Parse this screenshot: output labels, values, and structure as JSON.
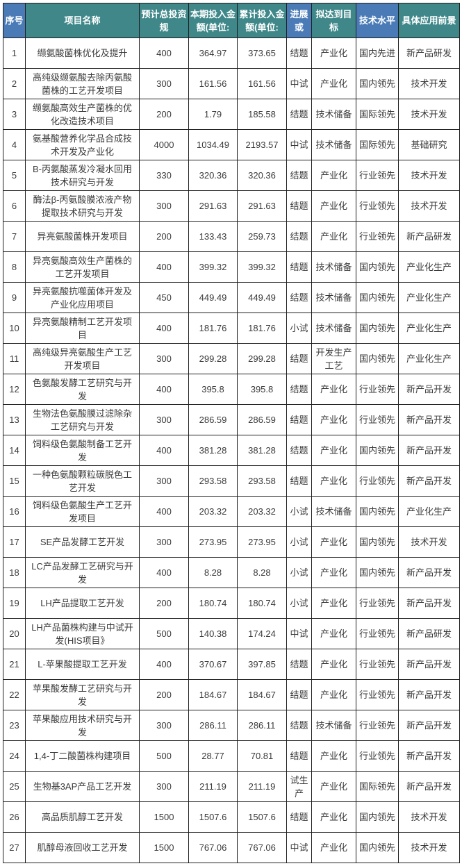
{
  "colors": {
    "teal": "#3F8789",
    "blue": "#4A7BB6",
    "header_text": "#FFFFFF",
    "body_text": "#3A3A3A",
    "border": "#1F1F1F"
  },
  "table": {
    "columns": [
      {
        "key": "seq",
        "label": "序号",
        "style": "blue"
      },
      {
        "key": "name",
        "label": "项目名称",
        "style": "teal"
      },
      {
        "key": "planned",
        "label": "预计总投资规",
        "style": "teal"
      },
      {
        "key": "current",
        "label": "本期投入金额(单位:",
        "style": "teal"
      },
      {
        "key": "cumulative",
        "label": "累计投入金额(单位:",
        "style": "teal"
      },
      {
        "key": "progress",
        "label": "进展或",
        "style": "blue"
      },
      {
        "key": "goal",
        "label": "拟达到目标",
        "style": "teal"
      },
      {
        "key": "tech_level",
        "label": "技术水平",
        "style": "blue"
      },
      {
        "key": "application",
        "label": "具体应用前景",
        "style": "teal"
      }
    ],
    "rows": [
      {
        "seq": "1",
        "name": "缬氨酸菌株优化及提升",
        "planned": "400",
        "current": "364.97",
        "cumulative": "373.65",
        "progress": "结题",
        "goal": "产业化",
        "tech_level": "国内先进",
        "application": "新产品研发"
      },
      {
        "seq": "2",
        "name": "高纯级缬氨酸去除丙氨酸菌株的工艺开发项目",
        "planned": "300",
        "current": "161.56",
        "cumulative": "161.56",
        "progress": "中试",
        "goal": "产业化",
        "tech_level": "国内领先",
        "application": "技术开发"
      },
      {
        "seq": "3",
        "name": "缬氨酸高效生产菌株的优化改造技术项目",
        "planned": "200",
        "current": "1.79",
        "cumulative": "185.58",
        "progress": "结题",
        "goal": "技术储备",
        "tech_level": "国际领先",
        "application": "技术开发"
      },
      {
        "seq": "4",
        "name": "氨基酸营养化学品合成技术开发及产业化",
        "planned": "4000",
        "current": "1034.49",
        "cumulative": "2193.57",
        "progress": "中试",
        "goal": "技术储备",
        "tech_level": "国际领先",
        "application": "基础研究"
      },
      {
        "seq": "5",
        "name": "B-丙氨酸蒸发冷凝水回用技术研究与开发",
        "planned": "330",
        "current": "320.36",
        "cumulative": "320.36",
        "progress": "结题",
        "goal": "产业化",
        "tech_level": "行业领先",
        "application": "技术开发"
      },
      {
        "seq": "6",
        "name": "酶法β-丙氨酸膜浓液产物提取技术研究与开发",
        "planned": "300",
        "current": "291.63",
        "cumulative": "291.63",
        "progress": "结题",
        "goal": "产业化",
        "tech_level": "行业领先",
        "application": "技术开发"
      },
      {
        "seq": "7",
        "name": "异亮氨酸菌株开发项目",
        "planned": "200",
        "current": "133.43",
        "cumulative": "259.73",
        "progress": "结题",
        "goal": "产业化",
        "tech_level": "行业领先",
        "application": "新产品研发"
      },
      {
        "seq": "8",
        "name": "异亮氨酸高效生产菌株的工艺开发项目",
        "planned": "400",
        "current": "399.32",
        "cumulative": "399.32",
        "progress": "结题",
        "goal": "技术储备",
        "tech_level": "国内领先",
        "application": "产业化生产"
      },
      {
        "seq": "9",
        "name": "异亮氨酸抗噬菌体开发及产业化应用项目",
        "planned": "450",
        "current": "449.49",
        "cumulative": "449.49",
        "progress": "结题",
        "goal": "技术储备",
        "tech_level": "国内领先",
        "application": "产业化生产"
      },
      {
        "seq": "10",
        "name": "异亮氨酸精制工艺开发项目",
        "planned": "400",
        "current": "181.76",
        "cumulative": "181.76",
        "progress": "小试",
        "goal": "技术储备",
        "tech_level": "国内领先",
        "application": "产业化生产"
      },
      {
        "seq": "11",
        "name": "高纯级异亮氨酸生产工艺开发项目",
        "planned": "300",
        "current": "299.28",
        "cumulative": "299.28",
        "progress": "结题",
        "goal": "开发生产工艺",
        "tech_level": "国内领先",
        "application": "产业化生产"
      },
      {
        "seq": "12",
        "name": "色氨酸发酵工艺研究与开发",
        "planned": "400",
        "current": "395.8",
        "cumulative": "395.8",
        "progress": "结题",
        "goal": "产业化",
        "tech_level": "行业领先",
        "application": "新产品开发"
      },
      {
        "seq": "13",
        "name": "生物法色氨酸膜过滤除杂工艺研究与开发",
        "planned": "300",
        "current": "286.59",
        "cumulative": "286.59",
        "progress": "结题",
        "goal": "产业化",
        "tech_level": "行业领先",
        "application": "新产品开发"
      },
      {
        "seq": "14",
        "name": "饲料级色氨酸制备工艺开发",
        "planned": "400",
        "current": "381.28",
        "cumulative": "381.28",
        "progress": "结题",
        "goal": "产业化",
        "tech_level": "国内领先",
        "application": "新产品开发"
      },
      {
        "seq": "15",
        "name": "一种色氨酸颗粒碳脱色工艺开发",
        "planned": "300",
        "current": "293.58",
        "cumulative": "293.58",
        "progress": "结题",
        "goal": "产业化",
        "tech_level": "行业领先",
        "application": "新产品开发"
      },
      {
        "seq": "16",
        "name": "饲料级色氨酸生产工艺开发项目",
        "planned": "400",
        "current": "203.32",
        "cumulative": "203.32",
        "progress": "小试",
        "goal": "技术储备",
        "tech_level": "国内领先",
        "application": "产业化生产"
      },
      {
        "seq": "17",
        "name": "SE产品发酵工艺开发",
        "planned": "300",
        "current": "273.95",
        "cumulative": "273.95",
        "progress": "小试",
        "goal": "产业化",
        "tech_level": "国内领先",
        "application": "技术开发"
      },
      {
        "seq": "18",
        "name": "LC产品发酵工艺研究与开发",
        "planned": "400",
        "current": "8.28",
        "cumulative": "8.28",
        "progress": "小试",
        "goal": "产业化",
        "tech_level": "国内领先",
        "application": "新产品开发"
      },
      {
        "seq": "19",
        "name": "LH产品提取工艺开发",
        "planned": "200",
        "current": "180.74",
        "cumulative": "180.74",
        "progress": "小试",
        "goal": "产业化",
        "tech_level": "行业领先",
        "application": "新产品开发"
      },
      {
        "seq": "20",
        "name": "LH产品菌株构建与中试开发(HIS项目》",
        "planned": "500",
        "current": "140.38",
        "cumulative": "174.24",
        "progress": "中试",
        "goal": "产业化",
        "tech_level": "行业领先",
        "application": "新产品研发"
      },
      {
        "seq": "21",
        "name": "L-苹果酸提取工艺开发",
        "planned": "400",
        "current": "370.67",
        "cumulative": "397.85",
        "progress": "结题",
        "goal": "产业化",
        "tech_level": "行业领先",
        "application": "新产品开发"
      },
      {
        "seq": "22",
        "name": "苹果酸发酵工艺研究与开发",
        "planned": "200",
        "current": "184.67",
        "cumulative": "184.67",
        "progress": "结题",
        "goal": "产业化",
        "tech_level": "行业领先",
        "application": "新产品开发"
      },
      {
        "seq": "23",
        "name": "苹果酸应用技术研究与开发",
        "planned": "300",
        "current": "286.11",
        "cumulative": "286.11",
        "progress": "结题",
        "goal": "技术储备",
        "tech_level": "行业领先",
        "application": "新产品开发"
      },
      {
        "seq": "24",
        "name": "1,4-丁二酸菌株构建项目",
        "planned": "500",
        "current": "28.77",
        "cumulative": "70.81",
        "progress": "结题",
        "goal": "产业化",
        "tech_level": "行业领先",
        "application": "新产品开发"
      },
      {
        "seq": "25",
        "name": "生物基3AP产品工艺开发",
        "planned": "300",
        "current": "211.19",
        "cumulative": "211.19",
        "progress": "试生产",
        "goal": "产业化",
        "tech_level": "国际领先",
        "application": "新产品开发"
      },
      {
        "seq": "26",
        "name": "高品质肌醇工艺开发",
        "planned": "1500",
        "current": "1507.6",
        "cumulative": "1507.6",
        "progress": "结题",
        "goal": "产业化",
        "tech_level": "国内领先",
        "application": "技术开发"
      },
      {
        "seq": "27",
        "name": "肌醇母液回收工艺开发",
        "planned": "1500",
        "current": "767.06",
        "cumulative": "767.06",
        "progress": "中试",
        "goal": "产业化",
        "tech_level": "国内领先",
        "application": "技术开发"
      }
    ]
  }
}
